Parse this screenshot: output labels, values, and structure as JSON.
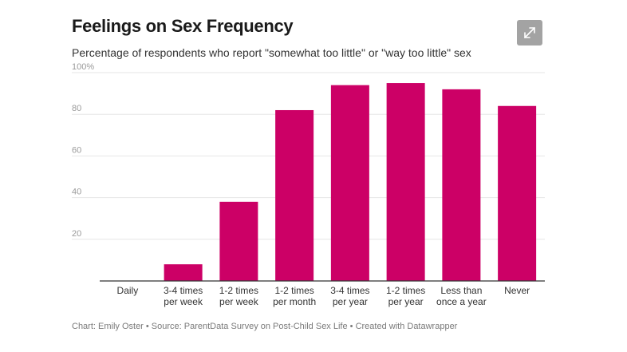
{
  "header": {
    "title": "Feelings on Sex Frequency",
    "subtitle": "Percentage of respondents who report \"somewhat too little\" or \"way too little\" sex"
  },
  "toolbar": {
    "expand_icon": "expand-arrows-icon"
  },
  "footer": {
    "credit": "Chart: Emily Oster • Source: ParentData Survey on Post-Child Sex Life • Created with Datawrapper"
  },
  "colors": {
    "bar": "#cc0066",
    "grid": "#e6e6e6",
    "axis": "#333333",
    "button": "#a3a3a3"
  },
  "chart_data": {
    "type": "bar",
    "title": "Feelings on Sex Frequency",
    "subtitle": "Percentage of respondents who report \"somewhat too little\" or \"way too little\" sex",
    "categories": [
      "Daily",
      "3-4 times per week",
      "1-2 times per week",
      "1-2 times per month",
      "3-4 times per year",
      "1-2 times per year",
      "Less than once a year",
      "Never"
    ],
    "category_lines": [
      [
        "Daily"
      ],
      [
        "3-4 times",
        "per week"
      ],
      [
        "1-2 times",
        "per week"
      ],
      [
        "1-2 times",
        "per month"
      ],
      [
        "3-4 times",
        "per year"
      ],
      [
        "1-2 times",
        "per year"
      ],
      [
        "Less than",
        "once a year"
      ],
      [
        "Never"
      ]
    ],
    "values": [
      0,
      8,
      38,
      82,
      94,
      95,
      92,
      84
    ],
    "ylim": [
      0,
      100
    ],
    "yticks": [
      20,
      40,
      60,
      80,
      100
    ],
    "ytick_labels": [
      "20",
      "40",
      "60",
      "80",
      "100%"
    ],
    "grid": true,
    "legend": "none",
    "xlabel": "",
    "ylabel": ""
  }
}
